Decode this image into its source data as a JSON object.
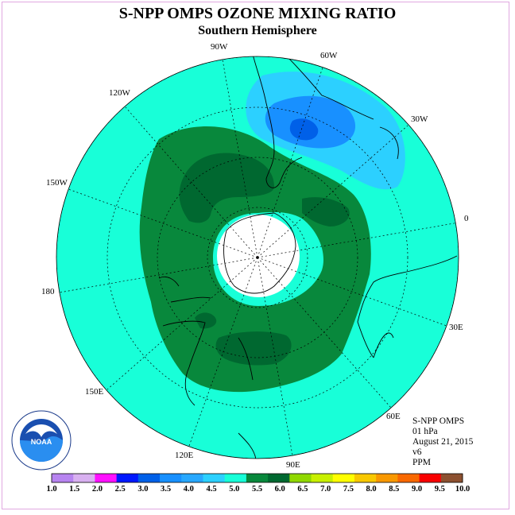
{
  "title": "S-NPP OMPS OZONE MIXING RATIO",
  "subtitle": "Southern Hemisphere",
  "longitude_labels": {
    "lon_90w": "90W",
    "lon_60w": "60W",
    "lon_30w": "30W",
    "lon_0": "0",
    "lon_30e": "30E",
    "lon_60e": "60E",
    "lon_90e": "90E",
    "lon_120e": "120E",
    "lon_150e": "150E",
    "lon_180": "180",
    "lon_150w": "150W",
    "lon_120w": "120W"
  },
  "info": {
    "instrument": "S-NPP OMPS",
    "level": "01 hPa",
    "date": "August 21, 2015",
    "version": "v6",
    "units": "PPM"
  },
  "logo": {
    "text": "NOAA",
    "ring_text": "NATIONAL OCEANIC AND ATMOSPHERIC ADMINISTRATION · U.S. DEPARTMENT OF COMMERCE"
  },
  "colorbar": {
    "ticks": [
      "1.0",
      "1.5",
      "2.0",
      "2.5",
      "3.0",
      "3.5",
      "4.0",
      "4.5",
      "5.0",
      "5.5",
      "6.0",
      "6.5",
      "7.0",
      "7.5",
      "8.0",
      "8.5",
      "9.0",
      "9.5",
      "10.0"
    ],
    "colors": [
      "#b784f0",
      "#d8b0f0",
      "#ff10ff",
      "#0018ff",
      "#0060e8",
      "#1890ff",
      "#28a8ff",
      "#2cd0ff",
      "#18ffd8",
      "#08883c",
      "#006830",
      "#90d800",
      "#c8f000",
      "#ffff00",
      "#f8c800",
      "#f89800",
      "#f86800",
      "#f80000",
      "#8c5030"
    ]
  },
  "map_colors": {
    "background_field": "#18ffd8",
    "green_band": "#08883c",
    "dark_green": "#006830",
    "light_blue": "#2cd0ff",
    "medium_blue": "#1890ff",
    "dark_blue": "#0060e8",
    "polar_hole": "#ffffff"
  }
}
